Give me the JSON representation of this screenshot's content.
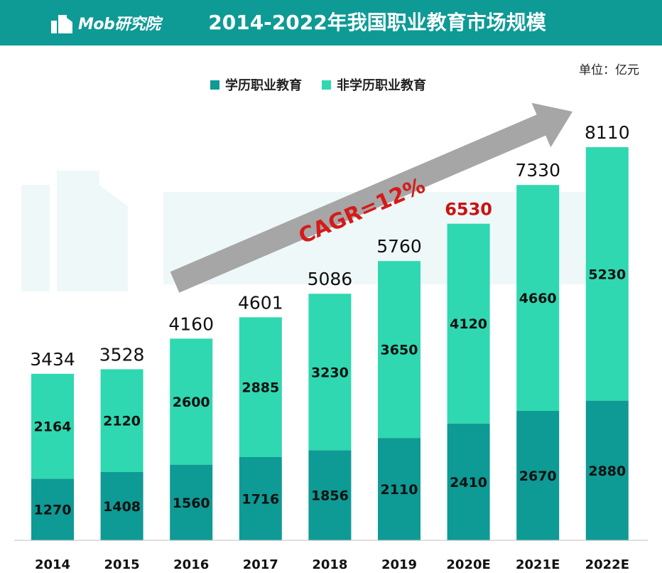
{
  "header": {
    "logo_text": "Mob研究院",
    "title": "2014-2022年我国职业教育市场规模"
  },
  "unit_label": "单位：亿元",
  "colors": {
    "header_bg": "#0e9a95",
    "academic": "#0e9a95",
    "non_academic": "#2fd8b0",
    "highlight_total": "#cc1111",
    "arrow": "#a6a6a6"
  },
  "annotation": {
    "text": "CAGR=12%"
  },
  "chart_data": {
    "type": "bar",
    "stacked": true,
    "categories": [
      "2014",
      "2015",
      "2016",
      "2017",
      "2018",
      "2019",
      "2020E",
      "2021E",
      "2022E"
    ],
    "series": [
      {
        "name": "学历职业教育",
        "values": [
          1270,
          1408,
          1560,
          1716,
          1856,
          2110,
          2410,
          2670,
          2880
        ]
      },
      {
        "name": "非学历职业教育",
        "values": [
          2164,
          2120,
          2600,
          2885,
          3230,
          3650,
          4120,
          4660,
          5230
        ]
      }
    ],
    "totals": [
      3434,
      3528,
      4160,
      4601,
      5086,
      5760,
      6530,
      7330,
      8110
    ],
    "highlight_total_index": 6,
    "title": "2014-2022年我国职业教育市场规模",
    "ylabel": "单位：亿元",
    "ylim": [
      0,
      8110
    ],
    "legend_position": "top",
    "grid": false
  }
}
